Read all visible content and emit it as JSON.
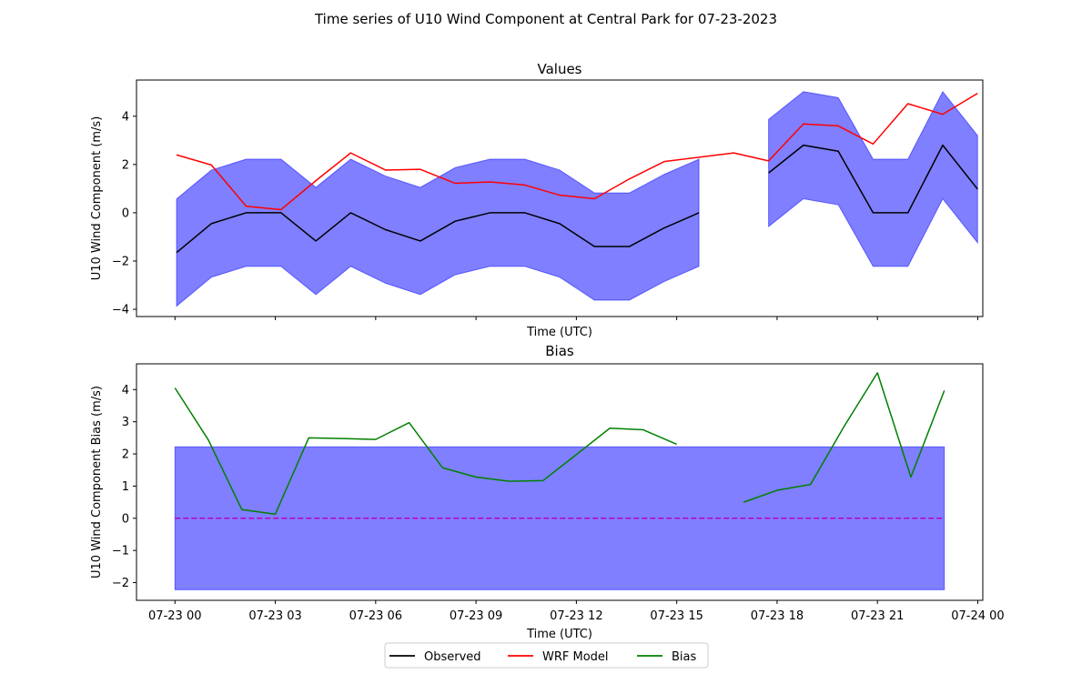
{
  "figure": {
    "suptitle": "Time series of U10 Wind Component at Central Park for 07-23-2023"
  },
  "legend": {
    "placement": "bottom-center",
    "entries": [
      {
        "label": "Observed",
        "color": "#000000"
      },
      {
        "label": "WRF Model",
        "color": "#ff0000"
      },
      {
        "label": "Bias",
        "color": "#008000"
      }
    ]
  },
  "chart_data": [
    {
      "type": "line",
      "title": "Values",
      "xlabel": "Time (UTC)",
      "ylabel": "U10 Wind Component (m/s)",
      "ylim": [
        -4.3,
        5.5
      ],
      "yticks": [
        -4,
        -2,
        0,
        2,
        4
      ],
      "xlim": [
        -1.15,
        23.15
      ],
      "x_hours": [
        0,
        1,
        2,
        3,
        4,
        5,
        6,
        7,
        8,
        9,
        10,
        11,
        12,
        13,
        14,
        15,
        16,
        17,
        18,
        19,
        20,
        21,
        22,
        23
      ],
      "band_color": "#0000ff",
      "series": [
        {
          "name": "Observed",
          "color": "#000000",
          "values": [
            -1.65,
            -0.45,
            0,
            0,
            -1.17,
            0,
            -0.7,
            -1.17,
            -0.35,
            0,
            0,
            -0.45,
            -1.4,
            -1.4,
            -0.63,
            0,
            null,
            1.65,
            2.8,
            2.55,
            0,
            0,
            2.8,
            0.98
          ]
        },
        {
          "name": "WRF Model",
          "color": "#ff0000",
          "values": [
            2.4,
            1.98,
            0.27,
            0.13,
            1.33,
            2.48,
            1.77,
            1.8,
            1.22,
            1.28,
            1.15,
            0.73,
            0.58,
            1.4,
            2.12,
            2.3,
            2.48,
            2.15,
            3.68,
            3.6,
            2.85,
            4.52,
            4.08,
            4.95
          ]
        }
      ],
      "band": {
        "lower": [
          -3.87,
          -2.67,
          -2.22,
          -2.22,
          -3.39,
          -2.22,
          -2.92,
          -3.39,
          -2.57,
          -2.22,
          -2.22,
          -2.67,
          -3.62,
          -3.62,
          -2.85,
          -2.22,
          null,
          -0.57,
          0.58,
          0.33,
          -2.22,
          -2.22,
          0.58,
          -1.24
        ],
        "upper": [
          0.57,
          1.77,
          2.22,
          2.22,
          1.05,
          2.22,
          1.52,
          1.05,
          1.87,
          2.22,
          2.22,
          1.77,
          0.82,
          0.82,
          1.59,
          2.22,
          null,
          3.87,
          5.02,
          4.77,
          2.22,
          2.22,
          5.02,
          3.2
        ]
      }
    },
    {
      "type": "line",
      "title": "Bias",
      "xlabel": "Time (UTC)",
      "ylabel": "U10 Wind Component Bias (m/s)",
      "ylim": [
        -2.55,
        4.8
      ],
      "yticks": [
        -2,
        -1,
        0,
        1,
        2,
        3,
        4
      ],
      "xlim": [
        -1.15,
        24.15
      ],
      "x_hours": [
        0,
        1,
        2,
        3,
        4,
        5,
        6,
        7,
        8,
        9,
        10,
        11,
        12,
        13,
        14,
        15,
        16,
        17,
        18,
        19,
        20,
        21,
        22,
        23
      ],
      "xticks": [
        0,
        3,
        6,
        9,
        12,
        15,
        18,
        21,
        24
      ],
      "xticklabels": [
        "07-23 00",
        "07-23 03",
        "07-23 06",
        "07-23 09",
        "07-23 12",
        "07-23 15",
        "07-23 18",
        "07-23 21",
        "07-24 00"
      ],
      "series": [
        {
          "name": "Bias",
          "color": "#008000",
          "values": [
            4.05,
            2.43,
            0.27,
            0.13,
            2.5,
            2.48,
            2.45,
            2.97,
            1.57,
            1.28,
            1.15,
            1.17,
            1.98,
            2.8,
            2.75,
            2.3,
            null,
            0.5,
            0.87,
            1.05,
            2.85,
            4.52,
            1.28,
            3.97
          ]
        }
      ],
      "band": {
        "lower": -2.22,
        "upper": 2.22,
        "color": "#0000ff"
      },
      "reference_line": {
        "value": 0,
        "color": "#bf00bf",
        "style": "dashed"
      }
    }
  ]
}
